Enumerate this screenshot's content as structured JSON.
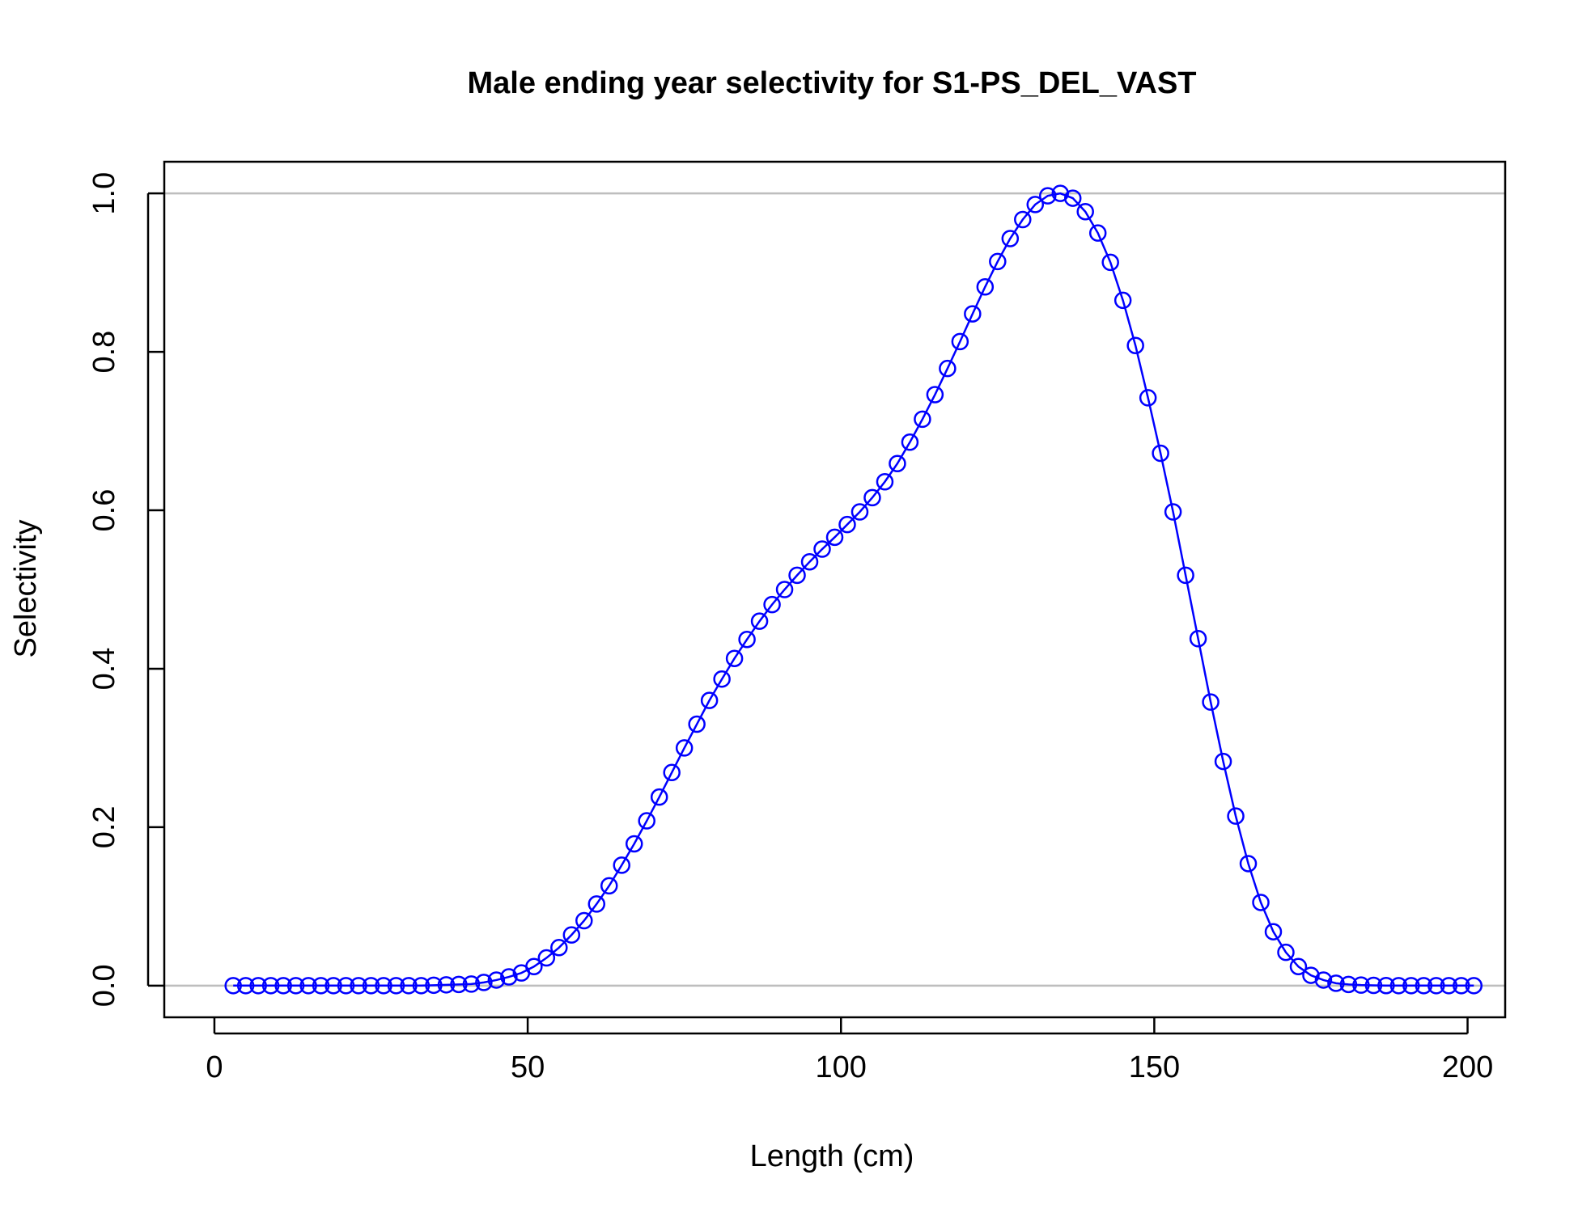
{
  "chart_data": {
    "type": "line",
    "title": "Male ending year selectivity for S1-PS_DEL_VAST",
    "xlabel": "Length (cm)",
    "ylabel": "Selectivity",
    "xlim": [
      -8,
      206
    ],
    "ylim": [
      -0.04,
      1.04
    ],
    "xticks": [
      0,
      50,
      100,
      150,
      200
    ],
    "yticks": [
      0.0,
      0.2,
      0.4,
      0.6,
      0.8,
      1.0
    ],
    "xtick_labels": [
      "0",
      "50",
      "100",
      "150",
      "200"
    ],
    "ytick_labels": [
      "0.0",
      "0.2",
      "0.4",
      "0.6",
      "0.8",
      "1.0"
    ],
    "reference_lines_y": [
      0,
      1
    ],
    "grid": false,
    "legend": "none",
    "colors": {
      "series": "#0000ff",
      "reference_line": "#bebebe",
      "axes": "#000000"
    },
    "series": [
      {
        "markers": "open-circle",
        "x": [
          3,
          5,
          7,
          9,
          11,
          13,
          15,
          17,
          19,
          21,
          23,
          25,
          27,
          29,
          31,
          33,
          35,
          37,
          39,
          41,
          43,
          45,
          47,
          49,
          51,
          53,
          55,
          57,
          59,
          61,
          63,
          65,
          67,
          69,
          71,
          73,
          75,
          77,
          79,
          81,
          83,
          85,
          87,
          89,
          91,
          93,
          95,
          97,
          99,
          101,
          103,
          105,
          107,
          109,
          111,
          113,
          115,
          117,
          119,
          121,
          123,
          125,
          127,
          129,
          131,
          133,
          135,
          137,
          139,
          141,
          143,
          145,
          147,
          149,
          151,
          153,
          155,
          157,
          159,
          161,
          163,
          165,
          167,
          169,
          171,
          173,
          175,
          177,
          179,
          181,
          183,
          185,
          187,
          189,
          191,
          193,
          195,
          197,
          199,
          201
        ],
        "y": [
          0,
          0,
          0,
          0,
          0,
          0,
          0,
          0,
          0,
          0,
          0,
          0,
          0,
          0,
          0,
          0,
          0.0005,
          0.001,
          0.0015,
          0.002,
          0.004,
          0.007,
          0.011,
          0.016,
          0.024,
          0.035,
          0.048,
          0.064,
          0.082,
          0.103,
          0.126,
          0.152,
          0.179,
          0.208,
          0.238,
          0.269,
          0.3,
          0.33,
          0.36,
          0.387,
          0.413,
          0.437,
          0.46,
          0.481,
          0.5,
          0.518,
          0.535,
          0.551,
          0.566,
          0.582,
          0.598,
          0.616,
          0.636,
          0.659,
          0.686,
          0.715,
          0.746,
          0.779,
          0.813,
          0.848,
          0.882,
          0.914,
          0.943,
          0.967,
          0.986,
          0.997,
          1.0,
          0.994,
          0.977,
          0.95,
          0.913,
          0.865,
          0.808,
          0.742,
          0.672,
          0.598,
          0.518,
          0.438,
          0.358,
          0.283,
          0.214,
          0.154,
          0.105,
          0.068,
          0.042,
          0.024,
          0.013,
          0.007,
          0.003,
          0.0015,
          0.0007,
          0.0003,
          0.0001,
          0,
          0,
          0,
          0,
          0,
          0,
          0
        ]
      }
    ]
  }
}
